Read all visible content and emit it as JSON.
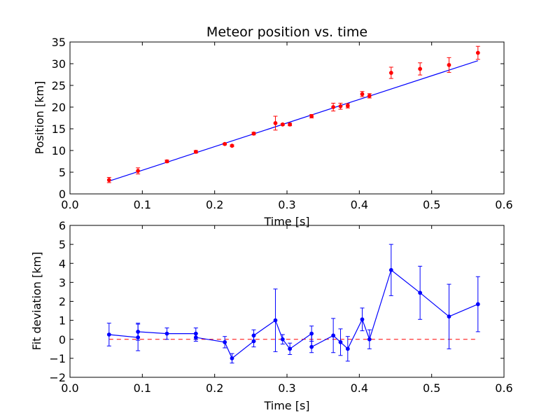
{
  "chart_data": [
    {
      "type": "scatter",
      "title": "Meteor position vs. time",
      "xlabel": "Time [s]",
      "ylabel": "Position [km]",
      "xlim": [
        0,
        0.6
      ],
      "ylim": [
        0,
        35
      ],
      "xticks": [
        "0.0",
        "0.1",
        "0.2",
        "0.3",
        "0.4",
        "0.5",
        "0.6"
      ],
      "yticks": [
        "0",
        "5",
        "10",
        "15",
        "20",
        "25",
        "30",
        "35"
      ],
      "grid": false,
      "series": [
        {
          "kind": "errorbar-points",
          "color": "#ff0000",
          "x": [
            0.054,
            0.094,
            0.134,
            0.174,
            0.214,
            0.224,
            0.254,
            0.284,
            0.294,
            0.304,
            0.334,
            0.364,
            0.374,
            0.384,
            0.404,
            0.414,
            0.444,
            0.484,
            0.524,
            0.564
          ],
          "y": [
            3.2,
            5.3,
            7.5,
            9.7,
            11.5,
            11.1,
            13.9,
            16.3,
            16.0,
            16.0,
            17.9,
            20.0,
            20.2,
            20.3,
            23.0,
            22.6,
            27.9,
            28.8,
            29.7,
            32.5
          ],
          "yerr": [
            0.6,
            0.7,
            0.3,
            0.3,
            0.2,
            0.2,
            0.3,
            1.6,
            0.2,
            0.3,
            0.4,
            0.9,
            0.7,
            0.5,
            0.6,
            0.5,
            1.3,
            1.4,
            1.7,
            1.5
          ]
        },
        {
          "kind": "fit-line",
          "color": "#0000ff",
          "x": [
            0.054,
            0.564
          ],
          "y": [
            2.95,
            30.7
          ]
        }
      ]
    },
    {
      "type": "line",
      "title": "",
      "xlabel": "Time [s]",
      "ylabel": "Fit deviation [km]",
      "xlim": [
        0,
        0.6
      ],
      "ylim": [
        -2,
        6
      ],
      "xticks": [
        "0.0",
        "0.1",
        "0.2",
        "0.3",
        "0.4",
        "0.5",
        "0.6"
      ],
      "yticks": [
        "−2",
        "−1",
        "0",
        "1",
        "2",
        "3",
        "4",
        "5",
        "6"
      ],
      "grid": false,
      "series": [
        {
          "kind": "errorbar-line",
          "color": "#0000ff",
          "x": [
            0.054,
            0.094,
            0.094,
            0.134,
            0.174,
            0.174,
            0.214,
            0.224,
            0.254,
            0.254,
            0.284,
            0.294,
            0.304,
            0.334,
            0.334,
            0.364,
            0.374,
            0.384,
            0.404,
            0.414,
            0.444,
            0.484,
            0.524,
            0.564
          ],
          "y": [
            0.25,
            0.1,
            0.4,
            0.3,
            0.3,
            0.1,
            -0.15,
            -1.0,
            -0.1,
            0.2,
            1.0,
            0.0,
            -0.5,
            0.3,
            -0.4,
            0.2,
            -0.15,
            -0.5,
            1.05,
            0.0,
            3.65,
            2.45,
            1.2,
            1.85
          ],
          "yerr": [
            0.6,
            0.7,
            0.45,
            0.3,
            0.3,
            0.2,
            0.3,
            0.25,
            0.3,
            0.3,
            1.65,
            0.25,
            0.3,
            0.4,
            0.3,
            0.9,
            0.7,
            0.65,
            0.6,
            0.5,
            1.35,
            1.4,
            1.7,
            1.45
          ]
        },
        {
          "kind": "zero-reference",
          "color": "#ff0000",
          "style": "dashed",
          "y": 0
        }
      ]
    }
  ]
}
